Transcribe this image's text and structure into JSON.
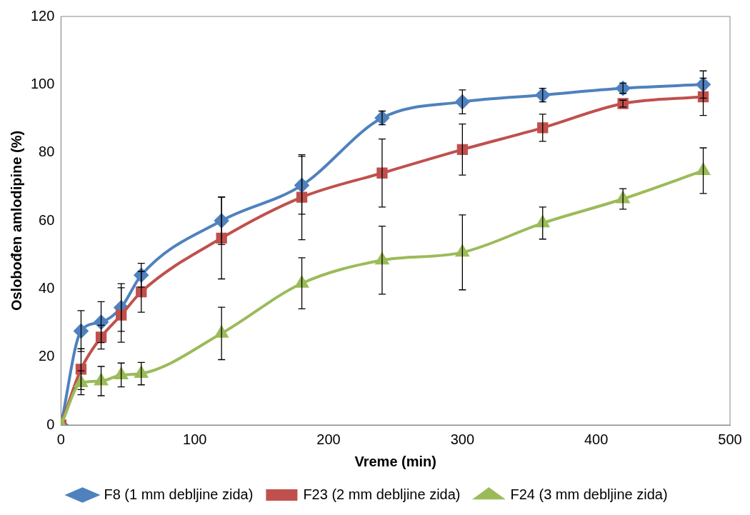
{
  "chart_data": {
    "type": "line",
    "xlabel": "Vreme (min)",
    "ylabel": "Oslobođen amlodipine (%)",
    "x": [
      0,
      15,
      30,
      45,
      60,
      120,
      180,
      240,
      300,
      360,
      420,
      480
    ],
    "xlim": [
      0,
      500
    ],
    "xticks": [
      0,
      100,
      200,
      300,
      400,
      500
    ],
    "ylim": [
      0,
      120
    ],
    "yticks": [
      0,
      20,
      40,
      60,
      80,
      100,
      120
    ],
    "grid": false,
    "legend": "bottom",
    "series": [
      {
        "name": "F8 (1 mm debljine zida)",
        "color": "#4f81bd",
        "marker": "diamond",
        "values": [
          0,
          27.6,
          30.2,
          34.5,
          44,
          60,
          70.4,
          90.2,
          94.9,
          96.9,
          98.9,
          100
        ],
        "errors": [
          null,
          6,
          6,
          7,
          3.5,
          7,
          8.5,
          2,
          3.5,
          2,
          1.5,
          4
        ]
      },
      {
        "name": "F23 (2 mm debljine zida)",
        "color": "#c0504d",
        "marker": "square",
        "values": [
          0,
          16.4,
          25.8,
          32.3,
          39.1,
          54.9,
          66.9,
          74,
          80.9,
          87.3,
          94.4,
          96.4
        ],
        "errors": [
          null,
          6,
          3.5,
          8,
          6,
          12,
          12.5,
          10,
          7.5,
          4,
          1,
          5.5
        ]
      },
      {
        "name": "F24 (3 mm debljine zida)",
        "color": "#9bbb59",
        "marker": "triangle",
        "values": [
          0,
          12.4,
          12.9,
          14.7,
          15.1,
          26.9,
          41.6,
          48.4,
          50.7,
          59.3,
          66.4,
          74.7
        ],
        "errors": [
          null,
          3.5,
          4.3,
          3.5,
          3.3,
          7.7,
          7.5,
          10,
          11,
          4.7,
          3,
          6.7
        ]
      }
    ]
  }
}
